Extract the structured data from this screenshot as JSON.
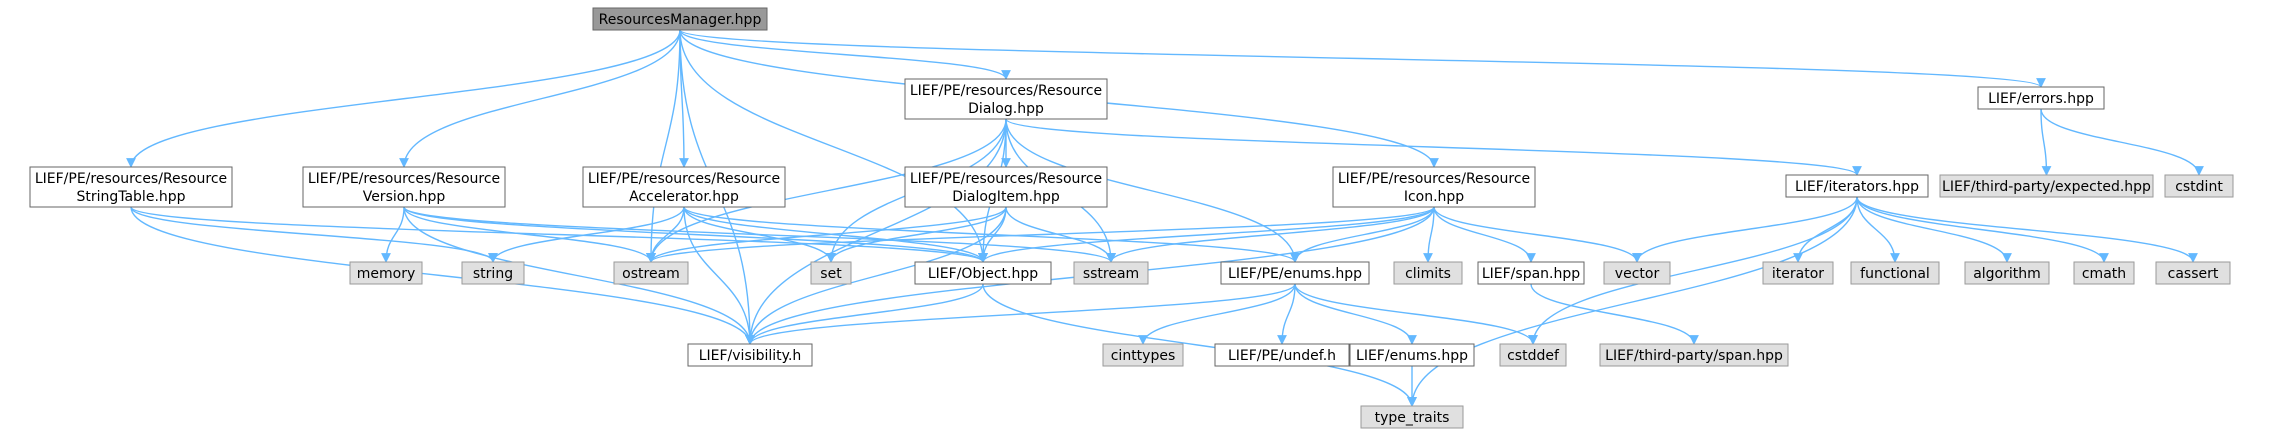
{
  "colors": {
    "edge": "#63b8ff",
    "root_fill": "#999999",
    "header_fill": "#ffffff",
    "system_fill": "#e0e0e0",
    "system_stroke": "#999999",
    "node_stroke": "#666666"
  },
  "nodes": [
    {
      "id": "rm",
      "kind": "root",
      "lines": [
        "ResourcesManager.hpp"
      ]
    },
    {
      "id": "dialog",
      "kind": "header",
      "lines": [
        "LIEF/PE/resources/Resource",
        "Dialog.hpp"
      ]
    },
    {
      "id": "errors",
      "kind": "header",
      "lines": [
        "LIEF/errors.hpp"
      ]
    },
    {
      "id": "stringtable",
      "kind": "header",
      "lines": [
        "LIEF/PE/resources/Resource",
        "StringTable.hpp"
      ]
    },
    {
      "id": "version",
      "kind": "header",
      "lines": [
        "LIEF/PE/resources/Resource",
        "Version.hpp"
      ]
    },
    {
      "id": "accel",
      "kind": "header",
      "lines": [
        "LIEF/PE/resources/Resource",
        "Accelerator.hpp"
      ]
    },
    {
      "id": "dialogitem",
      "kind": "header",
      "lines": [
        "LIEF/PE/resources/Resource",
        "DialogItem.hpp"
      ]
    },
    {
      "id": "icon",
      "kind": "header",
      "lines": [
        "LIEF/PE/resources/Resource",
        "Icon.hpp"
      ]
    },
    {
      "id": "iterators",
      "kind": "header",
      "lines": [
        "LIEF/iterators.hpp"
      ]
    },
    {
      "id": "expected",
      "kind": "system",
      "lines": [
        "LIEF/third-party/expected.hpp"
      ]
    },
    {
      "id": "cstdint",
      "kind": "system",
      "lines": [
        "cstdint"
      ]
    },
    {
      "id": "memory",
      "kind": "system",
      "lines": [
        "memory"
      ]
    },
    {
      "id": "string",
      "kind": "system",
      "lines": [
        "string"
      ]
    },
    {
      "id": "ostream",
      "kind": "system",
      "lines": [
        "ostream"
      ]
    },
    {
      "id": "set",
      "kind": "system",
      "lines": [
        "set"
      ]
    },
    {
      "id": "object",
      "kind": "header",
      "lines": [
        "LIEF/Object.hpp"
      ]
    },
    {
      "id": "sstream",
      "kind": "system",
      "lines": [
        "sstream"
      ]
    },
    {
      "id": "peenums",
      "kind": "header",
      "lines": [
        "LIEF/PE/enums.hpp"
      ]
    },
    {
      "id": "climits",
      "kind": "system",
      "lines": [
        "climits"
      ]
    },
    {
      "id": "span",
      "kind": "header",
      "lines": [
        "LIEF/span.hpp"
      ]
    },
    {
      "id": "vector",
      "kind": "system",
      "lines": [
        "vector"
      ]
    },
    {
      "id": "iterator",
      "kind": "system",
      "lines": [
        "iterator"
      ]
    },
    {
      "id": "functional",
      "kind": "system",
      "lines": [
        "functional"
      ]
    },
    {
      "id": "algorithm",
      "kind": "system",
      "lines": [
        "algorithm"
      ]
    },
    {
      "id": "cmath",
      "kind": "system",
      "lines": [
        "cmath"
      ]
    },
    {
      "id": "cassert",
      "kind": "system",
      "lines": [
        "cassert"
      ]
    },
    {
      "id": "visibility",
      "kind": "header",
      "lines": [
        "LIEF/visibility.h"
      ]
    },
    {
      "id": "cinttypes",
      "kind": "system",
      "lines": [
        "cinttypes"
      ]
    },
    {
      "id": "undef",
      "kind": "header",
      "lines": [
        "LIEF/PE/undef.h"
      ]
    },
    {
      "id": "enums",
      "kind": "header",
      "lines": [
        "LIEF/enums.hpp"
      ]
    },
    {
      "id": "cstddef",
      "kind": "system",
      "lines": [
        "cstddef"
      ]
    },
    {
      "id": "tpspan",
      "kind": "system",
      "lines": [
        "LIEF/third-party/span.hpp"
      ]
    },
    {
      "id": "typetraits",
      "kind": "system",
      "lines": [
        "type_traits"
      ]
    }
  ],
  "edges": [
    [
      "rm",
      "dialog"
    ],
    [
      "rm",
      "errors"
    ],
    [
      "rm",
      "stringtable"
    ],
    [
      "rm",
      "version"
    ],
    [
      "rm",
      "accel"
    ],
    [
      "rm",
      "icon"
    ],
    [
      "rm",
      "object"
    ],
    [
      "rm",
      "ostream"
    ],
    [
      "rm",
      "visibility"
    ],
    [
      "errors",
      "expected"
    ],
    [
      "errors",
      "cstdint"
    ],
    [
      "dialog",
      "dialogitem"
    ],
    [
      "dialog",
      "iterators"
    ],
    [
      "dialog",
      "ostream"
    ],
    [
      "dialog",
      "set"
    ],
    [
      "dialog",
      "object"
    ],
    [
      "dialog",
      "sstream"
    ],
    [
      "dialog",
      "peenums"
    ],
    [
      "dialog",
      "visibility"
    ],
    [
      "stringtable",
      "string"
    ],
    [
      "stringtable",
      "object"
    ],
    [
      "stringtable",
      "visibility"
    ],
    [
      "version",
      "memory"
    ],
    [
      "version",
      "ostream"
    ],
    [
      "version",
      "object"
    ],
    [
      "version",
      "sstream"
    ],
    [
      "version",
      "visibility"
    ],
    [
      "accel",
      "string"
    ],
    [
      "accel",
      "ostream"
    ],
    [
      "accel",
      "set"
    ],
    [
      "accel",
      "object"
    ],
    [
      "accel",
      "peenums"
    ],
    [
      "accel",
      "visibility"
    ],
    [
      "dialogitem",
      "ostream"
    ],
    [
      "dialogitem",
      "set"
    ],
    [
      "dialogitem",
      "object"
    ],
    [
      "dialogitem",
      "sstream"
    ],
    [
      "dialogitem",
      "visibility"
    ],
    [
      "icon",
      "ostream"
    ],
    [
      "icon",
      "object"
    ],
    [
      "icon",
      "sstream"
    ],
    [
      "icon",
      "peenums"
    ],
    [
      "icon",
      "climits"
    ],
    [
      "icon",
      "span"
    ],
    [
      "icon",
      "vector"
    ],
    [
      "icon",
      "visibility"
    ],
    [
      "iterators",
      "vector"
    ],
    [
      "iterators",
      "iterator"
    ],
    [
      "iterators",
      "functional"
    ],
    [
      "iterators",
      "algorithm"
    ],
    [
      "iterators",
      "cmath"
    ],
    [
      "iterators",
      "cassert"
    ],
    [
      "iterators",
      "cstddef"
    ],
    [
      "iterators",
      "typetraits"
    ],
    [
      "object",
      "visibility"
    ],
    [
      "object",
      "typetraits"
    ],
    [
      "peenums",
      "cinttypes"
    ],
    [
      "peenums",
      "undef"
    ],
    [
      "peenums",
      "enums"
    ],
    [
      "peenums",
      "cstddef"
    ],
    [
      "peenums",
      "visibility"
    ],
    [
      "enums",
      "typetraits"
    ],
    [
      "span",
      "tpspan"
    ]
  ]
}
